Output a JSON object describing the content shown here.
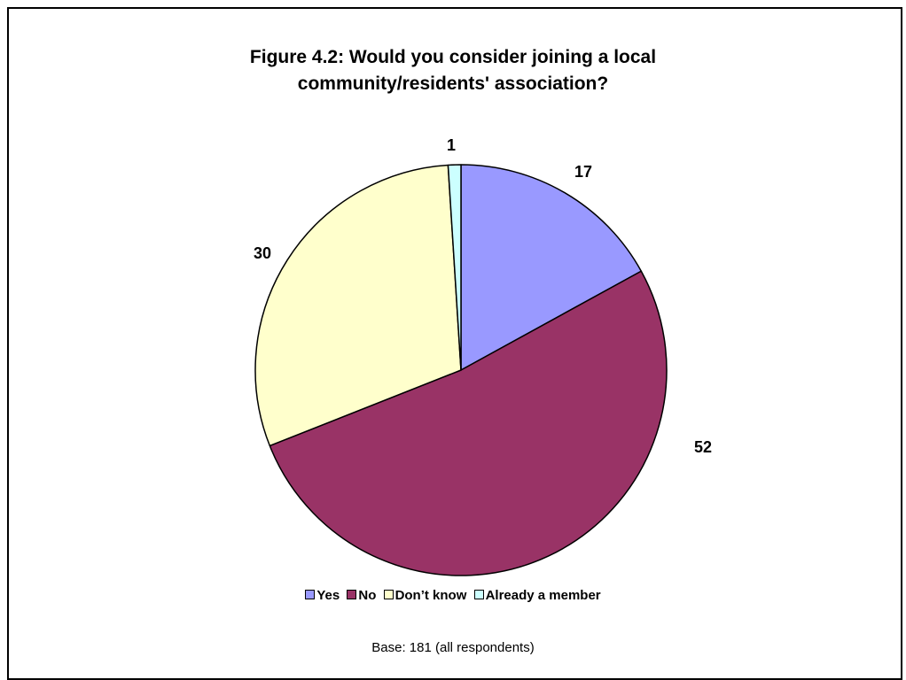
{
  "chart_data": {
    "type": "pie",
    "title_lines": [
      "Figure 4.2: Would you consider joining a local",
      "community/residents' association?"
    ],
    "categories": [
      "Yes",
      "No",
      "Don’t know",
      "Already a member"
    ],
    "values": [
      17,
      52,
      30,
      1
    ],
    "colors": [
      "#9999ff",
      "#993366",
      "#ffffcc",
      "#ccffff"
    ],
    "data_labels": [
      "17",
      "52",
      "30",
      "1"
    ],
    "legend_position": "bottom",
    "start_angle_deg": 0,
    "direction": "clockwise",
    "base_note": "Base:  181 (all respondents)"
  }
}
